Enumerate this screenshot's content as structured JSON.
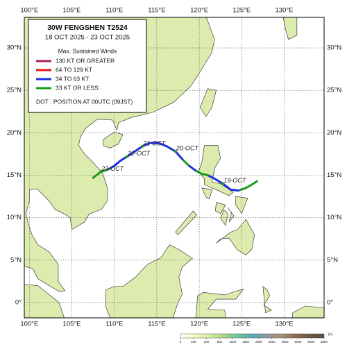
{
  "map": {
    "title": "30W  FENGSHEN  T2524",
    "subtitle": "18 OCT 2025 - 23 OCT 2025",
    "legend_heading": "Max. Sustained Winds",
    "legend": [
      {
        "label": "130 KT OR GREATER",
        "color": "#a3205f"
      },
      {
        "label": "64 TO 129 KT",
        "color": "#e8141a"
      },
      {
        "label": "34 TO 63 KT",
        "color": "#1f2fe0"
      },
      {
        "label": "33 KT OR LESS",
        "color": "#1a9a1a"
      }
    ],
    "dot_note": "DOT : POSITION AT 00UTC (09JST)",
    "lonlim": [
      99.4,
      134.7
    ],
    "latlim": [
      -1.8,
      33.6
    ],
    "lonticks": [
      {
        "value": 100,
        "label": "100°E"
      },
      {
        "value": 105,
        "label": "105°E"
      },
      {
        "value": 110,
        "label": "110°E"
      },
      {
        "value": 115,
        "label": "115°E"
      },
      {
        "value": 120,
        "label": "120°E"
      },
      {
        "value": 125,
        "label": "125°E"
      },
      {
        "value": 130,
        "label": "130°E"
      }
    ],
    "latticks": [
      {
        "value": 0,
        "label": "0°"
      },
      {
        "value": 5,
        "label": "5°N"
      },
      {
        "value": 10,
        "label": "10°N"
      },
      {
        "value": 15,
        "label": "15°N"
      },
      {
        "value": 20,
        "label": "20°N"
      },
      {
        "value": 25,
        "label": "25°N"
      },
      {
        "value": 30,
        "label": "30°N"
      }
    ],
    "track": [
      {
        "color": "#1a9a1a",
        "points": [
          {
            "lon": 126.8,
            "lat": 14.3
          },
          {
            "lon": 126.2,
            "lat": 13.9
          },
          {
            "lon": 125.5,
            "lat": 13.5
          },
          {
            "lon": 124.6,
            "lat": 13.2
          }
        ]
      },
      {
        "color": "#1f2fe0",
        "points": [
          {
            "lon": 124.6,
            "lat": 13.2
          },
          {
            "lon": 123.7,
            "lat": 13.3
          },
          {
            "lon": 122.8,
            "lat": 14.0
          },
          {
            "lon": 121.8,
            "lat": 14.6
          },
          {
            "lon": 121.0,
            "lat": 15.0
          }
        ]
      },
      {
        "color": "#1a9a1a",
        "points": [
          {
            "lon": 121.0,
            "lat": 15.0
          },
          {
            "lon": 120.2,
            "lat": 15.2
          },
          {
            "lon": 119.5,
            "lat": 15.6
          }
        ]
      },
      {
        "color": "#1f2fe0",
        "points": [
          {
            "lon": 119.5,
            "lat": 15.6
          },
          {
            "lon": 118.7,
            "lat": 16.2
          }
        ]
      },
      {
        "color": "#1a9a1a",
        "points": [
          {
            "lon": 118.7,
            "lat": 16.2
          },
          {
            "lon": 118.0,
            "lat": 16.9
          }
        ]
      },
      {
        "color": "#1f2fe0",
        "points": [
          {
            "lon": 118.0,
            "lat": 16.9
          },
          {
            "lon": 117.2,
            "lat": 17.8
          },
          {
            "lon": 116.2,
            "lat": 18.4
          },
          {
            "lon": 115.2,
            "lat": 18.8
          },
          {
            "lon": 114.2,
            "lat": 18.8
          },
          {
            "lon": 113.3,
            "lat": 18.4
          },
          {
            "lon": 112.4,
            "lat": 17.8
          },
          {
            "lon": 111.5,
            "lat": 17.2
          },
          {
            "lon": 110.7,
            "lat": 16.7
          },
          {
            "lon": 110.0,
            "lat": 16.1
          },
          {
            "lon": 109.3,
            "lat": 15.7
          }
        ]
      },
      {
        "color": "#1a9a1a",
        "points": [
          {
            "lon": 109.3,
            "lat": 15.7
          },
          {
            "lon": 108.4,
            "lat": 15.4
          },
          {
            "lon": 107.5,
            "lat": 14.7
          }
        ]
      }
    ],
    "dots": [
      {
        "label": "19-OCT",
        "lon": 122.8,
        "lat": 14.0
      },
      {
        "label": "20-OCT",
        "lon": 117.2,
        "lat": 17.8
      },
      {
        "label": "21-OCT",
        "lon": 113.3,
        "lat": 18.4
      },
      {
        "label": "22-OCT",
        "lon": 111.5,
        "lat": 17.2
      },
      {
        "label": "23-OCT",
        "lon": 108.4,
        "lat": 15.4
      }
    ],
    "colorbar_ticks": [
      0,
      100,
      200,
      500,
      1000,
      1500,
      2000,
      3000,
      4000,
      5000,
      6000,
      8000
    ],
    "colorbar_unit": "[m]"
  }
}
